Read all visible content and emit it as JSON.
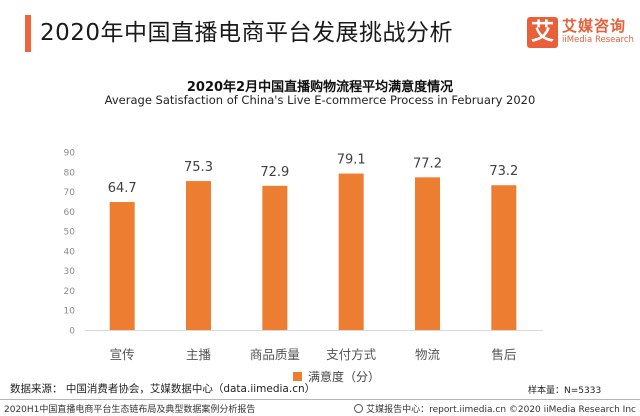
{
  "header": {
    "title": "2020年中国直播电商平台发展挑战分析",
    "logo": {
      "mark": "艾",
      "cn": "艾媒咨询",
      "en": "iiMedia Research",
      "color": "#e8603a"
    },
    "accent_color": "#f0643c"
  },
  "chart_data": {
    "type": "bar",
    "title": "2020年2月中国直播购物流程平均满意度情况",
    "subtitle": "Average Satisfaction of China's Live E-commerce Process in February 2020",
    "categories": [
      "宣传",
      "主播",
      "商品质量",
      "支付方式",
      "物流",
      "售后"
    ],
    "series": [
      {
        "name": "满意度（分）",
        "values": [
          64.7,
          75.3,
          72.9,
          79.1,
          77.2,
          73.2
        ],
        "color": "#ed7d31"
      }
    ],
    "data_labels": [
      "64.7",
      "75.3",
      "72.9",
      "79.1",
      "77.2",
      "73.2"
    ],
    "ylim": [
      0,
      90
    ],
    "yticks": [
      0,
      10,
      20,
      30,
      40,
      50,
      60,
      70,
      80,
      90
    ],
    "xlabel": "",
    "ylabel": "",
    "grid": false,
    "legend": {
      "position": "bottom-center",
      "entries": [
        "满意度（分）"
      ]
    }
  },
  "footer": {
    "source": "数据来源：  中国消费者协会，艾媒数据中心（data.iimedia.cn）",
    "sample": "样本量：N=5333",
    "report_name": "2020H1中国直播电商平台生态链布局及典型数据案例分析报告",
    "copyright": "艾媒报告中心：report.iimedia.cn  ©2020  iiMedia Research  Inc"
  }
}
